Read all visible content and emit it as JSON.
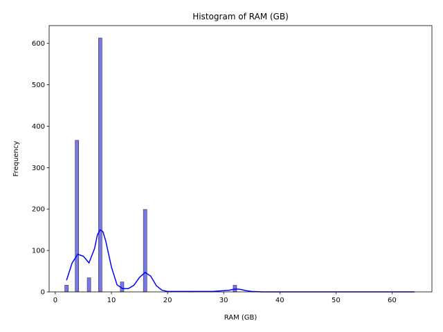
{
  "chart_data": {
    "type": "bar",
    "title": "Histogram of RAM (GB)",
    "xlabel": "RAM (GB)",
    "ylabel": "Frequency",
    "xlim": [
      -1.1,
      67.1
    ],
    "ylim": [
      0,
      643
    ],
    "xticks": [
      0,
      10,
      20,
      30,
      40,
      50,
      60
    ],
    "yticks": [
      0,
      100,
      200,
      300,
      400,
      500,
      600
    ],
    "bar_color": "#7777ee",
    "bar_edge_color": "#333333",
    "kde_color": "#0000ff",
    "bin_width": 0.62,
    "series": [
      {
        "type": "histogram",
        "bins": [
          {
            "x": 2.0,
            "count": 16
          },
          {
            "x": 3.86,
            "count": 366
          },
          {
            "x": 6.0,
            "count": 34
          },
          {
            "x": 8.0,
            "count": 613
          },
          {
            "x": 11.9,
            "count": 24
          },
          {
            "x": 16.0,
            "count": 199
          },
          {
            "x": 24.3,
            "count": 1
          },
          {
            "x": 32.0,
            "count": 16
          }
        ]
      },
      {
        "type": "kde",
        "points": [
          [
            2,
            28
          ],
          [
            3,
            70
          ],
          [
            4,
            91
          ],
          [
            5,
            86
          ],
          [
            6,
            70
          ],
          [
            7,
            105
          ],
          [
            7.5,
            138
          ],
          [
            8,
            150
          ],
          [
            8.5,
            145
          ],
          [
            9,
            122
          ],
          [
            10,
            60
          ],
          [
            11,
            17
          ],
          [
            12,
            8
          ],
          [
            13,
            8
          ],
          [
            14,
            16
          ],
          [
            15,
            35
          ],
          [
            16,
            47
          ],
          [
            17,
            38
          ],
          [
            18,
            15
          ],
          [
            19,
            4
          ],
          [
            20,
            1
          ],
          [
            22,
            1
          ],
          [
            24,
            1
          ],
          [
            26,
            1
          ],
          [
            28,
            1
          ],
          [
            30,
            3
          ],
          [
            31,
            4
          ],
          [
            32,
            7
          ],
          [
            33,
            6
          ],
          [
            34,
            3
          ],
          [
            35,
            1
          ],
          [
            37,
            0
          ],
          [
            40,
            0
          ],
          [
            45,
            0
          ],
          [
            50,
            0
          ],
          [
            55,
            0
          ],
          [
            60,
            0
          ],
          [
            64,
            0
          ]
        ]
      }
    ]
  }
}
